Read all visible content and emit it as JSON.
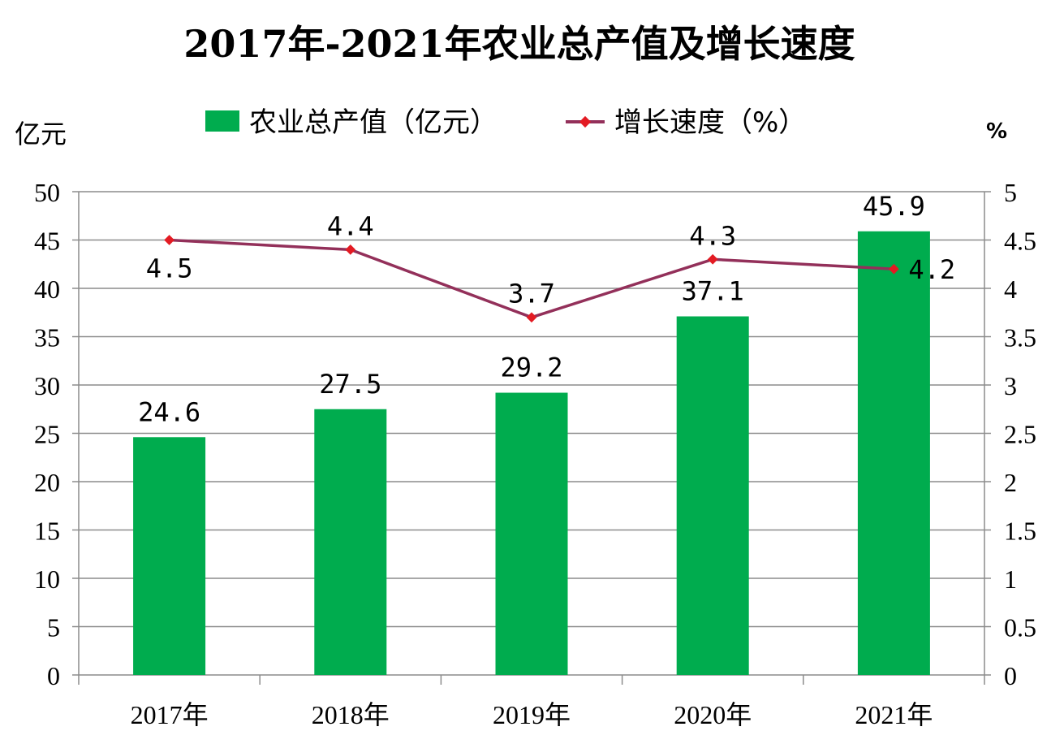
{
  "chart_data": {
    "type": "bar",
    "title": "2017年-2021年农业总产值及增长速度",
    "categories": [
      "2017年",
      "2018年",
      "2019年",
      "2020年",
      "2021年"
    ],
    "series": [
      {
        "name": "农业总产值（亿元）",
        "type": "bar",
        "axis": "left",
        "color": "#00AC4E",
        "values": [
          24.6,
          27.5,
          29.2,
          37.1,
          45.9
        ],
        "labels": [
          "24.6",
          "27.5",
          "29.2",
          "37.1",
          "45.9"
        ]
      },
      {
        "name": "增长速度（%）",
        "type": "line",
        "axis": "right",
        "color": "#93305A",
        "marker_color": "#E31B23",
        "values": [
          4.5,
          4.4,
          3.7,
          4.3,
          4.2
        ],
        "labels": [
          "4.5",
          "4.4",
          "3.7",
          "4.3",
          "4.2"
        ]
      }
    ],
    "y_left": {
      "unit": "亿元",
      "ylim": [
        0,
        50
      ],
      "ticks": [
        "0",
        "5",
        "10",
        "15",
        "20",
        "25",
        "30",
        "35",
        "40",
        "45",
        "50"
      ]
    },
    "y_right": {
      "unit": "%",
      "ylim": [
        0,
        5
      ],
      "ticks": [
        "0",
        "0.5",
        "1",
        "1.5",
        "2",
        "2.5",
        "3",
        "3.5",
        "4",
        "4.5",
        "5"
      ]
    },
    "grid": true,
    "legend": "top"
  }
}
